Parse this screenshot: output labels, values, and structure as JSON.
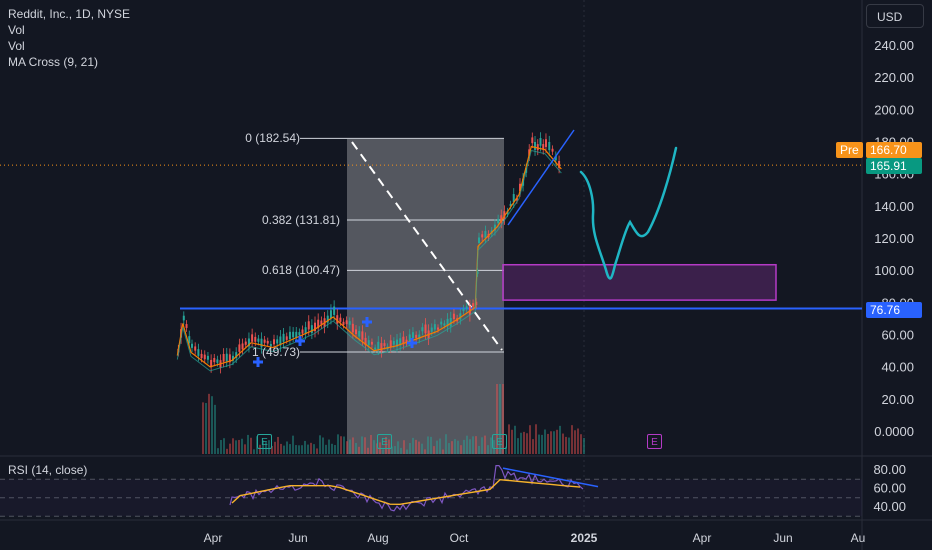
{
  "legend": {
    "symbol": "Reddit, Inc., 1D, NYSE",
    "vol1": "Vol",
    "vol2": "Vol",
    "ma_cross": "MA Cross (9, 21)"
  },
  "rsi_label": "RSI (14, close)",
  "currency_button": "USD",
  "price_axis": {
    "labels": [
      "240.00",
      "220.00",
      "200.00",
      "180.00",
      "160.00",
      "140.00",
      "120.00",
      "100.00",
      "80.00",
      "60.00",
      "40.00",
      "20.00",
      "0.0000"
    ],
    "pre_badge": "Pre",
    "pre_price": "166.70",
    "last_price": "165.91",
    "line_price": "76.76"
  },
  "rsi_axis": {
    "labels": [
      "80.00",
      "60.00",
      "40.00"
    ]
  },
  "time_axis": {
    "labels": [
      "Apr",
      "Jun",
      "Aug",
      "Oct",
      "2025",
      "Apr",
      "Jun",
      "Au"
    ]
  },
  "fib_levels": [
    {
      "label": "0 (182.54)",
      "value": 182.54
    },
    {
      "label": "0.382 (131.81)",
      "value": 131.81
    },
    {
      "label": "0.618 (100.47)",
      "value": 100.47
    },
    {
      "label": "1 (49.73)",
      "value": 49.73
    }
  ],
  "earnings_marker": "E",
  "colors": {
    "background": "#131722",
    "up": "#26a69a",
    "down": "#ef5350",
    "horizontal_line": "#2962ff",
    "projection": "#1fb6c4",
    "zone": "#b43ac6",
    "pre_market": "#f7931a",
    "last": "#089981"
  },
  "chart_data": {
    "type": "line",
    "symbol": "RDDT",
    "price_close_points": [
      {
        "x": "Mar 21",
        "y": 50
      },
      {
        "x": "Mar 25",
        "y": 70
      },
      {
        "x": "Apr 1",
        "y": 52
      },
      {
        "x": "Apr 15",
        "y": 43
      },
      {
        "x": "May 1",
        "y": 47
      },
      {
        "x": "May 15",
        "y": 58
      },
      {
        "x": "Jun 1",
        "y": 55
      },
      {
        "x": "Jun 15",
        "y": 60
      },
      {
        "x": "Jul 1",
        "y": 66
      },
      {
        "x": "Jul 15",
        "y": 74
      },
      {
        "x": "Aug 1",
        "y": 62
      },
      {
        "x": "Aug 15",
        "y": 53
      },
      {
        "x": "Sep 1",
        "y": 56
      },
      {
        "x": "Sep 15",
        "y": 60
      },
      {
        "x": "Oct 1",
        "y": 65
      },
      {
        "x": "Oct 15",
        "y": 72
      },
      {
        "x": "Oct 29",
        "y": 80
      },
      {
        "x": "Nov 1",
        "y": 118
      },
      {
        "x": "Nov 15",
        "y": 130
      },
      {
        "x": "Dec 1",
        "y": 150
      },
      {
        "x": "Dec 10",
        "y": 180
      },
      {
        "x": "Dec 20",
        "y": 178
      },
      {
        "x": "Jan 2",
        "y": 166
      }
    ],
    "horizontal_line": 76.76,
    "target_zone": [
      82,
      104
    ],
    "y_range": [
      0,
      250
    ],
    "rsi_range": [
      30,
      90
    ]
  }
}
